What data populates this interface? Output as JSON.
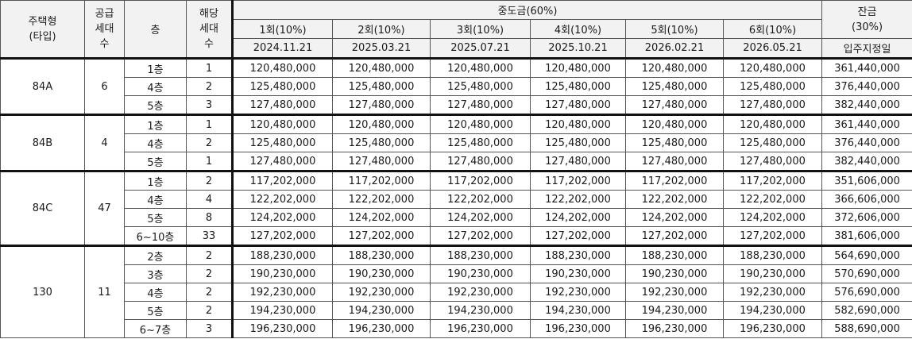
{
  "header": {
    "type": [
      "주택형",
      "(타입)"
    ],
    "supply": [
      "공급",
      "세대",
      "수"
    ],
    "floor": "층",
    "units": [
      "해당",
      "세대",
      "수"
    ],
    "middle": "중도금(60%)",
    "balance": [
      "잔금",
      "(30%)"
    ],
    "installments": [
      {
        "label": "1회(10%)",
        "date": "2024.11.21"
      },
      {
        "label": "2회(10%)",
        "date": "2025.03.21"
      },
      {
        "label": "3회(10%)",
        "date": "2025.07.21"
      },
      {
        "label": "4회(10%)",
        "date": "2025.10.21"
      },
      {
        "label": "5회(10%)",
        "date": "2026.02.21"
      },
      {
        "label": "6회(10%)",
        "date": "2026.05.21"
      }
    ],
    "balance_date": "입주지정일"
  },
  "groups": [
    {
      "type": "84A",
      "supply": "6",
      "rows": [
        {
          "floor": "1층",
          "units": "1",
          "payments": [
            "120,480,000",
            "120,480,000",
            "120,480,000",
            "120,480,000",
            "120,480,000",
            "120,480,000"
          ],
          "balance": "361,440,000"
        },
        {
          "floor": "4층",
          "units": "2",
          "payments": [
            "125,480,000",
            "125,480,000",
            "125,480,000",
            "125,480,000",
            "125,480,000",
            "125,480,000"
          ],
          "balance": "376,440,000"
        },
        {
          "floor": "5층",
          "units": "3",
          "payments": [
            "127,480,000",
            "127,480,000",
            "127,480,000",
            "127,480,000",
            "127,480,000",
            "127,480,000"
          ],
          "balance": "382,440,000"
        }
      ]
    },
    {
      "type": "84B",
      "supply": "4",
      "rows": [
        {
          "floor": "1층",
          "units": "1",
          "payments": [
            "120,480,000",
            "120,480,000",
            "120,480,000",
            "120,480,000",
            "120,480,000",
            "120,480,000"
          ],
          "balance": "361,440,000"
        },
        {
          "floor": "4층",
          "units": "2",
          "payments": [
            "125,480,000",
            "125,480,000",
            "125,480,000",
            "125,480,000",
            "125,480,000",
            "125,480,000"
          ],
          "balance": "376,440,000"
        },
        {
          "floor": "5층",
          "units": "1",
          "payments": [
            "127,480,000",
            "127,480,000",
            "127,480,000",
            "127,480,000",
            "127,480,000",
            "127,480,000"
          ],
          "balance": "382,440,000"
        }
      ]
    },
    {
      "type": "84C",
      "supply": "47",
      "rows": [
        {
          "floor": "1층",
          "units": "2",
          "payments": [
            "117,202,000",
            "117,202,000",
            "117,202,000",
            "117,202,000",
            "117,202,000",
            "117,202,000"
          ],
          "balance": "351,606,000"
        },
        {
          "floor": "4층",
          "units": "4",
          "payments": [
            "122,202,000",
            "122,202,000",
            "122,202,000",
            "122,202,000",
            "122,202,000",
            "122,202,000"
          ],
          "balance": "366,606,000"
        },
        {
          "floor": "5층",
          "units": "8",
          "payments": [
            "124,202,000",
            "124,202,000",
            "124,202,000",
            "124,202,000",
            "124,202,000",
            "124,202,000"
          ],
          "balance": "372,606,000"
        },
        {
          "floor": "6~10층",
          "units": "33",
          "payments": [
            "127,202,000",
            "127,202,000",
            "127,202,000",
            "127,202,000",
            "127,202,000",
            "127,202,000"
          ],
          "balance": "381,606,000"
        }
      ]
    },
    {
      "type": "130",
      "supply": "11",
      "rows": [
        {
          "floor": "2층",
          "units": "2",
          "payments": [
            "188,230,000",
            "188,230,000",
            "188,230,000",
            "188,230,000",
            "188,230,000",
            "188,230,000"
          ],
          "balance": "564,690,000"
        },
        {
          "floor": "3층",
          "units": "2",
          "payments": [
            "190,230,000",
            "190,230,000",
            "190,230,000",
            "190,230,000",
            "190,230,000",
            "190,230,000"
          ],
          "balance": "570,690,000"
        },
        {
          "floor": "4층",
          "units": "2",
          "payments": [
            "192,230,000",
            "192,230,000",
            "192,230,000",
            "192,230,000",
            "192,230,000",
            "192,230,000"
          ],
          "balance": "576,690,000"
        },
        {
          "floor": "5층",
          "units": "2",
          "payments": [
            "194,230,000",
            "194,230,000",
            "194,230,000",
            "194,230,000",
            "194,230,000",
            "194,230,000"
          ],
          "balance": "582,690,000"
        },
        {
          "floor": "6~7층",
          "units": "3",
          "payments": [
            "196,230,000",
            "196,230,000",
            "196,230,000",
            "196,230,000",
            "196,230,000",
            "196,230,000"
          ],
          "balance": "588,690,000"
        }
      ]
    }
  ]
}
